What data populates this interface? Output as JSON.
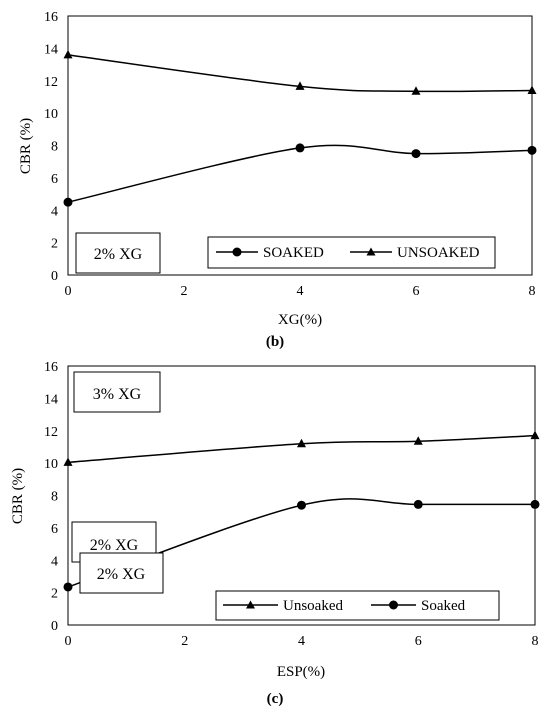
{
  "chart_data": [
    {
      "type": "line",
      "xlabel": "XG(%)",
      "ylabel": "CBR (%)",
      "xlim": [
        0,
        8
      ],
      "ylim": [
        0,
        16
      ],
      "xticks": [
        "0",
        "2",
        "4",
        "6",
        "8"
      ],
      "yticks": [
        "0",
        "2",
        "4",
        "6",
        "8",
        "10",
        "12",
        "14",
        "16"
      ],
      "x": [
        0,
        4,
        6,
        8
      ],
      "series": [
        {
          "name": "SOAKED",
          "marker": "circle",
          "values": [
            4.5,
            7.85,
            7.5,
            7.7
          ]
        },
        {
          "name": "UNSOAKED",
          "marker": "triangle",
          "values": [
            13.6,
            11.65,
            11.35,
            11.4
          ]
        }
      ],
      "annotations": [
        "2% XG"
      ],
      "caption": "(b)",
      "grid": false,
      "legend_position": "bottom-right"
    },
    {
      "type": "line",
      "xlabel": "ESP(%)",
      "ylabel": "CBR (%)",
      "xlim": [
        0,
        8
      ],
      "ylim": [
        0,
        16
      ],
      "xticks": [
        "0",
        "2",
        "4",
        "6",
        "8"
      ],
      "yticks": [
        "0",
        "2",
        "4",
        "6",
        "8",
        "10",
        "12",
        "14",
        "16"
      ],
      "x": [
        0,
        4,
        6,
        8
      ],
      "series": [
        {
          "name": "Unsoaked",
          "marker": "triangle",
          "values": [
            10.05,
            11.2,
            11.35,
            11.7
          ]
        },
        {
          "name": "Soaked",
          "marker": "circle",
          "values": [
            2.35,
            7.4,
            7.45,
            7.45
          ]
        }
      ],
      "annotations": [
        "3% XG",
        "2% XG",
        "2% XG"
      ],
      "caption": "(c)",
      "grid": false,
      "legend_position": "bottom-right"
    }
  ]
}
